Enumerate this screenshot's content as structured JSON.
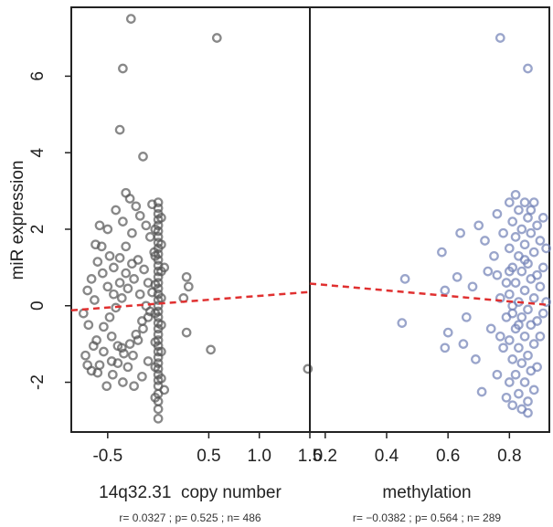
{
  "chart_data": [
    {
      "type": "scatter",
      "panel": "left",
      "xlabel": "14q32.31  copy number",
      "ylabel": "miR expression",
      "xlim": [
        -0.86,
        1.5
      ],
      "ylim": [
        -3.3,
        7.8
      ],
      "xticks": [
        "-0.5",
        "0.5",
        "1.0",
        "1.5"
      ],
      "xtick_values": [
        -0.5,
        0.5,
        1.0,
        1.5
      ],
      "yticks": [
        "-2",
        "0",
        "2",
        "4",
        "6"
      ],
      "ytick_values": [
        -2,
        0,
        2,
        4,
        6
      ],
      "point_color": "#555555",
      "regression_color": "#e03030",
      "regression": {
        "x": [
          -0.86,
          1.5
        ],
        "y": [
          -0.12,
          0.36
        ]
      },
      "stats": "r= 0.0327 ; p= 0.525 ; n= 486",
      "points": [
        [
          -0.27,
          7.5
        ],
        [
          0.58,
          7.0
        ],
        [
          -0.35,
          6.2
        ],
        [
          -0.38,
          4.6
        ],
        [
          -0.15,
          3.9
        ],
        [
          1.48,
          -1.65
        ],
        [
          0.52,
          -1.15
        ],
        [
          0.28,
          -0.7
        ],
        [
          0.28,
          0.75
        ],
        [
          0.3,
          0.5
        ],
        [
          0.25,
          0.2
        ],
        [
          -0.32,
          2.95
        ],
        [
          -0.35,
          2.2
        ],
        [
          -0.42,
          2.5
        ],
        [
          -0.5,
          2.0
        ],
        [
          -0.58,
          2.1
        ],
        [
          -0.62,
          1.6
        ],
        [
          -0.48,
          1.3
        ],
        [
          -0.55,
          0.85
        ],
        [
          -0.66,
          0.7
        ],
        [
          -0.7,
          0.4
        ],
        [
          -0.63,
          0.15
        ],
        [
          -0.74,
          -0.2
        ],
        [
          -0.69,
          -0.5
        ],
        [
          -0.61,
          -0.9
        ],
        [
          -0.54,
          -1.2
        ],
        [
          -0.72,
          -1.3
        ],
        [
          -0.66,
          -1.7
        ],
        [
          -0.58,
          -1.55
        ],
        [
          -0.51,
          -2.1
        ],
        [
          -0.45,
          -1.8
        ],
        [
          -0.4,
          -1.5
        ],
        [
          -0.35,
          -2.0
        ],
        [
          -0.3,
          -1.6
        ],
        [
          -0.25,
          -1.3
        ],
        [
          -0.2,
          -0.9
        ],
        [
          -0.15,
          -0.6
        ],
        [
          -0.1,
          -0.3
        ],
        [
          -0.28,
          2.8
        ],
        [
          -0.22,
          2.6
        ],
        [
          -0.18,
          2.35
        ],
        [
          -0.12,
          2.1
        ],
        [
          -0.08,
          1.8
        ],
        [
          -0.26,
          1.9
        ],
        [
          -0.32,
          1.55
        ],
        [
          -0.38,
          1.25
        ],
        [
          -0.44,
          1.0
        ],
        [
          -0.2,
          1.2
        ],
        [
          -0.14,
          0.95
        ],
        [
          -0.24,
          0.7
        ],
        [
          -0.3,
          0.45
        ],
        [
          -0.36,
          0.2
        ],
        [
          -0.42,
          -0.05
        ],
        [
          -0.48,
          -0.3
        ],
        [
          -0.54,
          -0.55
        ],
        [
          -0.46,
          -0.8
        ],
        [
          -0.4,
          -1.05
        ],
        [
          -0.34,
          -1.25
        ],
        [
          -0.28,
          -1.0
        ],
        [
          -0.22,
          -0.75
        ],
        [
          -0.16,
          -0.4
        ],
        [
          -0.12,
          0.0
        ],
        [
          -0.06,
          0.35
        ],
        [
          -0.1,
          0.6
        ],
        [
          -0.04,
          1.4
        ],
        [
          -0.56,
          1.55
        ],
        [
          -0.6,
          1.15
        ],
        [
          -0.5,
          0.5
        ],
        [
          -0.44,
          0.3
        ],
        [
          -0.38,
          0.6
        ],
        [
          -0.32,
          0.85
        ],
        [
          -0.26,
          1.1
        ],
        [
          -0.18,
          0.3
        ],
        [
          -0.08,
          -0.15
        ],
        [
          -0.64,
          -1.05
        ],
        [
          -0.7,
          -1.55
        ],
        [
          -0.6,
          -1.75
        ],
        [
          -0.46,
          -1.45
        ],
        [
          -0.36,
          -1.1
        ],
        [
          -0.24,
          -2.1
        ],
        [
          -0.16,
          -1.85
        ],
        [
          -0.1,
          -1.45
        ],
        [
          0,
          2.7
        ],
        [
          0,
          2.55
        ],
        [
          0,
          2.4
        ],
        [
          0,
          2.25
        ],
        [
          0,
          2.1
        ],
        [
          0,
          1.95
        ],
        [
          0,
          1.8
        ],
        [
          0,
          1.65
        ],
        [
          0,
          1.5
        ],
        [
          0,
          1.35
        ],
        [
          0,
          1.2
        ],
        [
          0,
          1.05
        ],
        [
          0,
          0.9
        ],
        [
          0,
          0.75
        ],
        [
          0,
          0.6
        ],
        [
          0,
          0.45
        ],
        [
          0,
          0.3
        ],
        [
          0,
          0.15
        ],
        [
          0,
          0.0
        ],
        [
          0,
          -0.15
        ],
        [
          0,
          -0.3
        ],
        [
          0,
          -0.45
        ],
        [
          0,
          -0.6
        ],
        [
          0,
          -0.75
        ],
        [
          0,
          -0.9
        ],
        [
          0,
          -1.05
        ],
        [
          0,
          -1.2
        ],
        [
          0,
          -1.35
        ],
        [
          0,
          -1.5
        ],
        [
          0,
          -1.65
        ],
        [
          0,
          -1.8
        ],
        [
          0,
          -1.95
        ],
        [
          0,
          -2.1
        ],
        [
          0,
          -2.3
        ],
        [
          0,
          -2.5
        ],
        [
          0,
          -2.7
        ],
        [
          0,
          -2.95
        ],
        [
          0.03,
          2.3
        ],
        [
          0.03,
          1.6
        ],
        [
          0.03,
          0.9
        ],
        [
          0.03,
          0.2
        ],
        [
          0.03,
          -0.5
        ],
        [
          0.03,
          -1.2
        ],
        [
          0.03,
          -1.9
        ],
        [
          -0.03,
          2.0
        ],
        [
          -0.03,
          1.3
        ],
        [
          -0.03,
          0.55
        ],
        [
          -0.03,
          -0.2
        ],
        [
          -0.03,
          -0.95
        ],
        [
          -0.03,
          -1.6
        ],
        [
          -0.03,
          -2.4
        ],
        [
          0.06,
          -2.2
        ],
        [
          0.06,
          1.0
        ],
        [
          -0.06,
          2.65
        ]
      ]
    },
    {
      "type": "scatter",
      "panel": "right",
      "xlabel": "methylation",
      "ylabel": "",
      "xlim": [
        0.15,
        0.93
      ],
      "ylim": [
        -3.3,
        7.8
      ],
      "xticks": [
        "0.2",
        "0.4",
        "0.6",
        "0.8"
      ],
      "xtick_values": [
        0.2,
        0.4,
        0.6,
        0.8
      ],
      "point_color": "#6f7fb5",
      "regression_color": "#e03030",
      "regression": {
        "x": [
          0.15,
          0.93
        ],
        "y": [
          0.58,
          0.02
        ]
      },
      "stats": "r= −0.0382 ; p= 0.564 ; n= 289",
      "points": [
        [
          0.77,
          7.0
        ],
        [
          0.86,
          6.2
        ],
        [
          0.46,
          0.7
        ],
        [
          0.45,
          -0.45
        ],
        [
          0.58,
          1.4
        ],
        [
          0.59,
          0.4
        ],
        [
          0.6,
          -0.7
        ],
        [
          0.59,
          -1.1
        ],
        [
          0.64,
          1.9
        ],
        [
          0.63,
          0.75
        ],
        [
          0.66,
          -0.3
        ],
        [
          0.65,
          -1.0
        ],
        [
          0.68,
          0.5
        ],
        [
          0.7,
          2.1
        ],
        [
          0.69,
          -1.4
        ],
        [
          0.71,
          -2.25
        ],
        [
          0.72,
          1.7
        ],
        [
          0.73,
          0.9
        ],
        [
          0.74,
          -0.6
        ],
        [
          0.75,
          1.3
        ],
        [
          0.76,
          2.4
        ],
        [
          0.76,
          -1.8
        ],
        [
          0.77,
          0.2
        ],
        [
          0.78,
          -1.1
        ],
        [
          0.78,
          1.9
        ],
        [
          0.79,
          -2.4
        ],
        [
          0.79,
          0.6
        ],
        [
          0.8,
          2.7
        ],
        [
          0.8,
          1.5
        ],
        [
          0.8,
          0.3
        ],
        [
          0.8,
          -0.9
        ],
        [
          0.8,
          -2.0
        ],
        [
          0.81,
          2.2
        ],
        [
          0.81,
          1.0
        ],
        [
          0.81,
          -0.2
        ],
        [
          0.81,
          -1.4
        ],
        [
          0.81,
          -2.6
        ],
        [
          0.82,
          1.8
        ],
        [
          0.82,
          0.6
        ],
        [
          0.82,
          -0.6
        ],
        [
          0.82,
          -1.8
        ],
        [
          0.83,
          2.5
        ],
        [
          0.83,
          1.3
        ],
        [
          0.83,
          0.1
        ],
        [
          0.83,
          -1.1
        ],
        [
          0.83,
          -2.3
        ],
        [
          0.84,
          2.0
        ],
        [
          0.84,
          0.9
        ],
        [
          0.84,
          -0.3
        ],
        [
          0.84,
          -1.5
        ],
        [
          0.85,
          2.7
        ],
        [
          0.85,
          1.6
        ],
        [
          0.85,
          0.4
        ],
        [
          0.85,
          -0.8
        ],
        [
          0.85,
          -2.0
        ],
        [
          0.86,
          2.3
        ],
        [
          0.86,
          1.1
        ],
        [
          0.86,
          -0.1
        ],
        [
          0.86,
          -1.3
        ],
        [
          0.86,
          -2.5
        ],
        [
          0.87,
          1.9
        ],
        [
          0.87,
          0.7
        ],
        [
          0.87,
          -0.5
        ],
        [
          0.87,
          -1.7
        ],
        [
          0.88,
          2.7
        ],
        [
          0.88,
          1.4
        ],
        [
          0.88,
          0.2
        ],
        [
          0.88,
          -1.0
        ],
        [
          0.88,
          -2.2
        ],
        [
          0.89,
          2.1
        ],
        [
          0.89,
          0.8
        ],
        [
          0.89,
          -0.4
        ],
        [
          0.89,
          -1.6
        ],
        [
          0.9,
          1.7
        ],
        [
          0.9,
          0.5
        ],
        [
          0.9,
          -0.8
        ],
        [
          0.91,
          2.3
        ],
        [
          0.91,
          1.0
        ],
        [
          0.91,
          -0.2
        ],
        [
          0.92,
          0.1
        ],
        [
          0.92,
          1.5
        ],
        [
          0.79,
          -0.3
        ],
        [
          0.8,
          0.9
        ],
        [
          0.82,
          2.9
        ],
        [
          0.84,
          -2.7
        ],
        [
          0.86,
          -2.8
        ],
        [
          0.87,
          2.5
        ],
        [
          0.83,
          -0.5
        ],
        [
          0.85,
          1.2
        ],
        [
          0.81,
          0.0
        ],
        [
          0.77,
          -0.8
        ],
        [
          0.76,
          0.8
        ]
      ]
    }
  ]
}
